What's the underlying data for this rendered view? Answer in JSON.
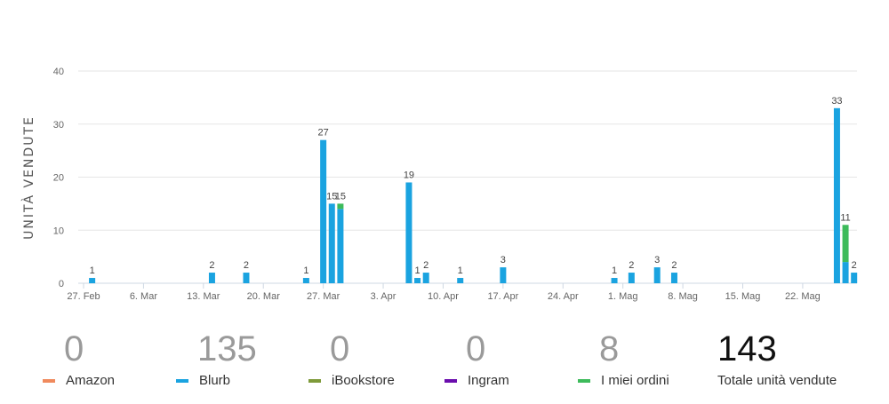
{
  "chart_data": {
    "type": "bar",
    "stacked": true,
    "ylabel": "UNITÀ VENDUTE",
    "ylim": [
      0,
      40
    ],
    "yticks": [
      0,
      10,
      20,
      30,
      40
    ],
    "grid": true,
    "x_start": "2022-02-27",
    "x_ticks": [
      {
        "label": "27. Feb",
        "day": 0
      },
      {
        "label": "6. Mar",
        "day": 7
      },
      {
        "label": "13. Mar",
        "day": 14
      },
      {
        "label": "20. Mar",
        "day": 21
      },
      {
        "label": "27. Mar",
        "day": 28
      },
      {
        "label": "3. Apr",
        "day": 35
      },
      {
        "label": "10. Apr",
        "day": 42
      },
      {
        "label": "17. Apr",
        "day": 49
      },
      {
        "label": "24. Apr",
        "day": 56
      },
      {
        "label": "1. Mag",
        "day": 63
      },
      {
        "label": "8. Mag",
        "day": 70
      },
      {
        "label": "15. Mag",
        "day": 77
      },
      {
        "label": "22. Mag",
        "day": 84
      }
    ],
    "series": [
      {
        "name": "Amazon",
        "color": "#f08a5d",
        "points": []
      },
      {
        "name": "Blurb",
        "color": "#1aa3e0",
        "points": [
          {
            "day": 1,
            "value": 1
          },
          {
            "day": 15,
            "value": 2
          },
          {
            "day": 19,
            "value": 2
          },
          {
            "day": 26,
            "value": 1
          },
          {
            "day": 28,
            "value": 27
          },
          {
            "day": 29,
            "value": 15
          },
          {
            "day": 30,
            "value": 14
          },
          {
            "day": 38,
            "value": 19
          },
          {
            "day": 39,
            "value": 1
          },
          {
            "day": 40,
            "value": 2
          },
          {
            "day": 44,
            "value": 1
          },
          {
            "day": 49,
            "value": 3
          },
          {
            "day": 62,
            "value": 1
          },
          {
            "day": 64,
            "value": 2
          },
          {
            "day": 67,
            "value": 3
          },
          {
            "day": 69,
            "value": 2
          },
          {
            "day": 88,
            "value": 33
          },
          {
            "day": 89,
            "value": 4
          },
          {
            "day": 90,
            "value": 2
          }
        ]
      },
      {
        "name": "iBookstore",
        "color": "#7e9a3a",
        "points": []
      },
      {
        "name": "Ingram",
        "color": "#6a0dad",
        "points": []
      },
      {
        "name": "I miei ordini",
        "color": "#3dbb5b",
        "points": [
          {
            "day": 30,
            "value": 1
          },
          {
            "day": 89,
            "value": 7
          }
        ]
      }
    ],
    "totals": [
      {
        "day": 1,
        "label": "1"
      },
      {
        "day": 15,
        "label": "2"
      },
      {
        "day": 19,
        "label": "2"
      },
      {
        "day": 26,
        "label": "1"
      },
      {
        "day": 28,
        "label": "27"
      },
      {
        "day": 29,
        "label": "15"
      },
      {
        "day": 30,
        "label": "15"
      },
      {
        "day": 38,
        "label": "19"
      },
      {
        "day": 39,
        "label": "1"
      },
      {
        "day": 40,
        "label": "2"
      },
      {
        "day": 44,
        "label": "1"
      },
      {
        "day": 49,
        "label": "3"
      },
      {
        "day": 62,
        "label": "1"
      },
      {
        "day": 64,
        "label": "2"
      },
      {
        "day": 67,
        "label": "3"
      },
      {
        "day": 69,
        "label": "2"
      },
      {
        "day": 88,
        "label": "33"
      },
      {
        "day": 89,
        "label": "11"
      },
      {
        "day": 90,
        "label": "2"
      }
    ]
  },
  "summary": [
    {
      "value": "0",
      "label": "Amazon",
      "color": "#f08a5d"
    },
    {
      "value": "135",
      "label": "Blurb",
      "color": "#1aa3e0"
    },
    {
      "value": "0",
      "label": "iBookstore",
      "color": "#7e9a3a"
    },
    {
      "value": "0",
      "label": "Ingram",
      "color": "#6a0dad"
    },
    {
      "value": "8",
      "label": "I miei ordini",
      "color": "#3dbb5b"
    },
    {
      "value": "143",
      "label": "Totale unità vendute",
      "color": ""
    }
  ]
}
